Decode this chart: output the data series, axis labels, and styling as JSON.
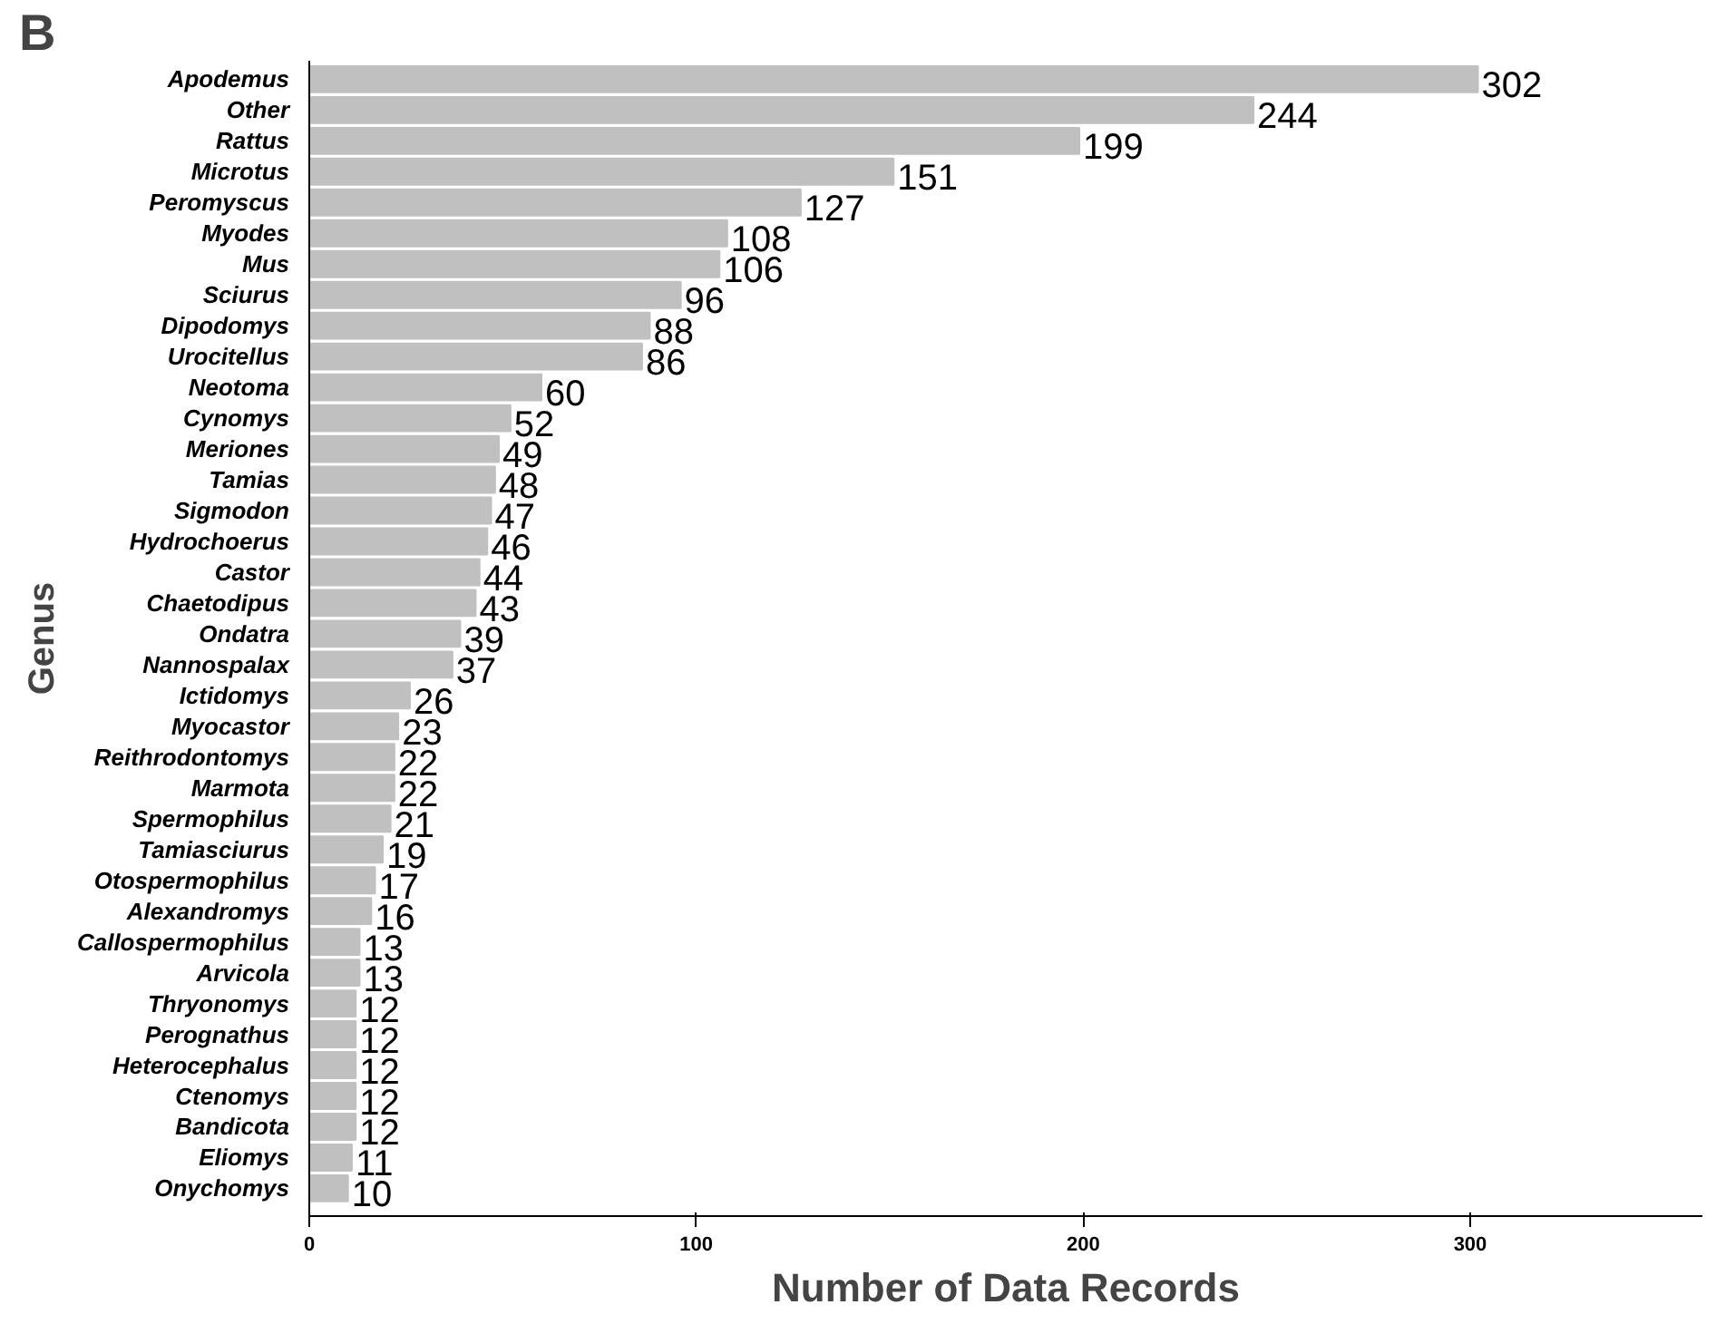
{
  "chart_data": {
    "type": "bar",
    "orientation": "horizontal",
    "xlabel": "Number of Data Records",
    "ylabel": "Genus",
    "annotations": [
      "B"
    ],
    "categories": [
      "Apodemus",
      "Other",
      "Rattus",
      "Microtus",
      "Peromyscus",
      "Myodes",
      "Mus",
      "Sciurus",
      "Dipodomys",
      "Urocitellus",
      "Neotoma",
      "Cynomys",
      "Meriones",
      "Tamias",
      "Sigmodon",
      "Hydrochoerus",
      "Castor",
      "Chaetodipus",
      "Ondatra",
      "Nannospalax",
      "Ictidomys",
      "Myocastor",
      "Reithrodontomys",
      "Marmota",
      "Spermophilus",
      "Tamiasciurus",
      "Otospermophilus",
      "Alexandromys",
      "Callospermophilus",
      "Arvicola",
      "Thryonomys",
      "Perognathus",
      "Heterocephalus",
      "Ctenomys",
      "Bandicota",
      "Eliomys",
      "Onychomys"
    ],
    "values": [
      302,
      244,
      199,
      151,
      127,
      108,
      106,
      96,
      88,
      86,
      60,
      52,
      49,
      48,
      47,
      46,
      44,
      43,
      39,
      37,
      26,
      23,
      22,
      22,
      21,
      19,
      17,
      16,
      13,
      13,
      12,
      12,
      12,
      12,
      12,
      11,
      10
    ],
    "color": "#c0c0c0",
    "data_labels": true,
    "xlim": [
      0,
      360
    ],
    "xticks": [
      0,
      100,
      200,
      300
    ],
    "grid": false
  }
}
